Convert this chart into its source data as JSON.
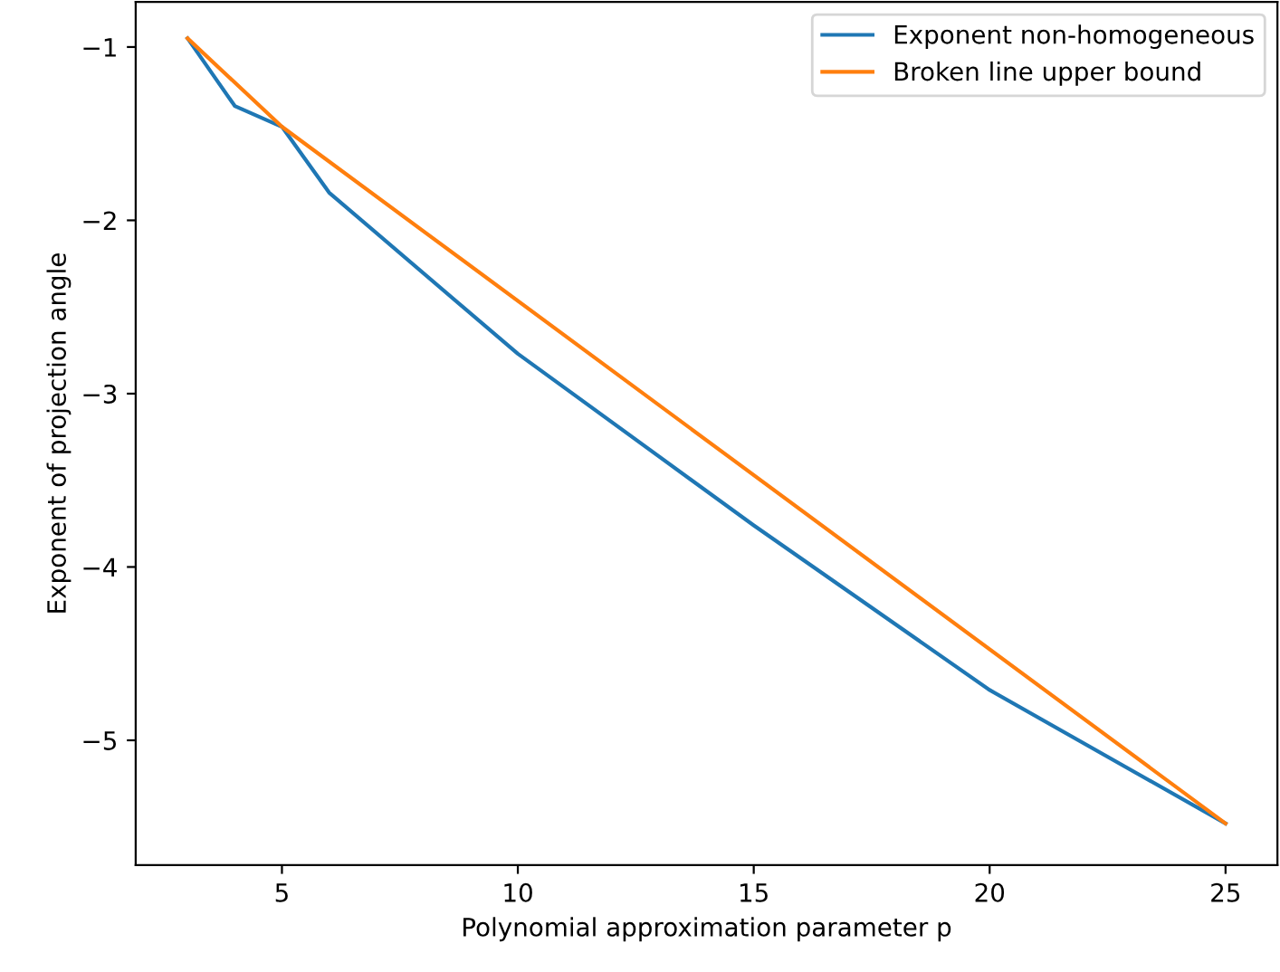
{
  "chart_data": {
    "type": "line",
    "xlabel": "Polynomial approximation parameter p",
    "ylabel": "Exponent of projection angle",
    "xlim": [
      1.9,
      26.1
    ],
    "xticks": [
      5,
      10,
      15,
      20,
      25
    ],
    "ylim": [
      -5.72,
      -0.74
    ],
    "yticks": [
      {
        "value": -1,
        "label": "−1"
      },
      {
        "value": -2,
        "label": "−2"
      },
      {
        "value": -3,
        "label": "−3"
      },
      {
        "value": -4,
        "label": "−4"
      },
      {
        "value": -5,
        "label": "−5"
      }
    ],
    "series": [
      {
        "name": "Exponent non-homogeneous",
        "color": "#1f77b4",
        "x": [
          3,
          4,
          5,
          6,
          10,
          15,
          20,
          25
        ],
        "values": [
          -0.95,
          -1.34,
          -1.46,
          -1.84,
          -2.77,
          -3.76,
          -4.71,
          -5.48
        ]
      },
      {
        "name": "Broken line upper bound",
        "color": "#ff7f0e",
        "x": [
          3,
          5,
          25
        ],
        "values": [
          -0.95,
          -1.46,
          -5.48
        ]
      }
    ],
    "grid": false,
    "legend": "top right"
  }
}
